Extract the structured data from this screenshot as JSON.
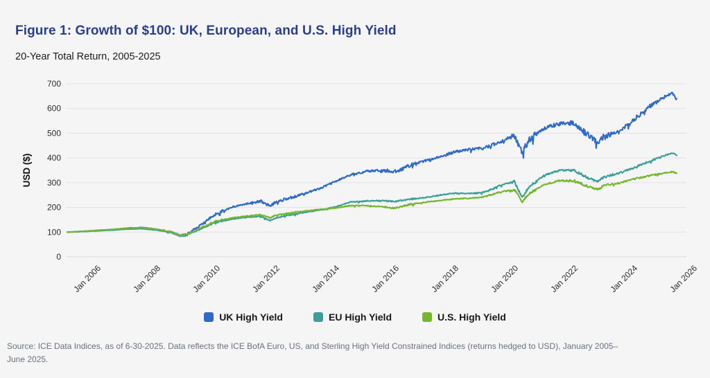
{
  "figure": {
    "title": "Figure 1: Growth of $100: UK, European, and U.S. High Yield",
    "subtitle": "20-Year Total Return, 2005-2025",
    "source_line1": "Source: ICE Data Indices, as of 6-30-2025. Data reflects the ICE BofA Euro, US, and Sterling High Yield Constrained Indices (returns hedged to USD), January 2005–",
    "source_line2": "June 2025."
  },
  "colors": {
    "title": "#2a3e8f",
    "background": "#f5f5f6",
    "gridline": "#e2e2e6",
    "axis_line": "#d9d9dd",
    "tick_text": "#2c2c30",
    "source_text": "#68717d",
    "legend_text": "#17171a"
  },
  "chart_data": {
    "type": "line",
    "title": "Growth of $100: UK, European, and U.S. High Yield",
    "subtitle": "20-Year Total Return, 2005-2025",
    "xlabel": "",
    "ylabel": "USD ($)",
    "ylim": [
      0,
      700
    ],
    "yticks": [
      0,
      100,
      200,
      300,
      400,
      500,
      600,
      700
    ],
    "xlim": [
      2005,
      2026
    ],
    "xticks": [
      "Jan 2006",
      "Jan 2008",
      "Jan 2010",
      "Jan 2012",
      "Jan 2014",
      "Jan 2016",
      "Jan 2018",
      "Jan 2020",
      "Jan 2022",
      "Jan 2024",
      "Jan 2026"
    ],
    "xtick_years": [
      2006,
      2008,
      2010,
      2012,
      2014,
      2016,
      2018,
      2020,
      2022,
      2024,
      2026
    ],
    "grid": true,
    "legend_position": "bottom",
    "x_years": [
      2005.0,
      2005.5,
      2006.0,
      2006.5,
      2007.0,
      2007.5,
      2008.0,
      2008.5,
      2008.8,
      2009.0,
      2009.5,
      2010.0,
      2010.5,
      2011.0,
      2011.5,
      2011.8,
      2012.0,
      2012.5,
      2013.0,
      2013.5,
      2014.0,
      2014.5,
      2015.0,
      2015.5,
      2016.0,
      2016.5,
      2017.0,
      2017.5,
      2018.0,
      2018.5,
      2019.0,
      2019.5,
      2020.0,
      2020.25,
      2020.5,
      2021.0,
      2021.5,
      2022.0,
      2022.5,
      2022.8,
      2023.0,
      2023.5,
      2024.0,
      2024.5,
      2025.0,
      2025.3,
      2025.45
    ],
    "series": [
      {
        "name": "UK High Yield",
        "color": "#2e6ac9",
        "values": [
          100,
          103,
          107,
          110,
          116,
          119,
          112,
          100,
          87,
          92,
          130,
          175,
          200,
          215,
          225,
          205,
          222,
          240,
          258,
          278,
          305,
          332,
          345,
          350,
          345,
          370,
          388,
          405,
          425,
          435,
          440,
          465,
          490,
          425,
          475,
          520,
          540,
          540,
          490,
          462,
          488,
          505,
          555,
          605,
          645,
          660,
          635
        ]
      },
      {
        "name": "EU High Yield",
        "color": "#3b9e98",
        "values": [
          100,
          102,
          105,
          108,
          112,
          114,
          108,
          97,
          83,
          87,
          115,
          140,
          152,
          160,
          163,
          147,
          158,
          170,
          180,
          190,
          202,
          222,
          226,
          228,
          224,
          233,
          240,
          250,
          258,
          256,
          262,
          288,
          305,
          240,
          285,
          330,
          350,
          350,
          317,
          305,
          322,
          338,
          360,
          385,
          408,
          420,
          410
        ]
      },
      {
        "name": "U.S. High Yield",
        "color": "#74b72d",
        "values": [
          100,
          103,
          107,
          111,
          116,
          118,
          112,
          100,
          86,
          90,
          118,
          145,
          157,
          165,
          170,
          158,
          168,
          178,
          186,
          192,
          198,
          207,
          207,
          203,
          197,
          212,
          221,
          228,
          235,
          237,
          243,
          262,
          272,
          222,
          258,
          292,
          308,
          308,
          283,
          273,
          288,
          298,
          315,
          328,
          338,
          345,
          337
        ]
      }
    ]
  }
}
